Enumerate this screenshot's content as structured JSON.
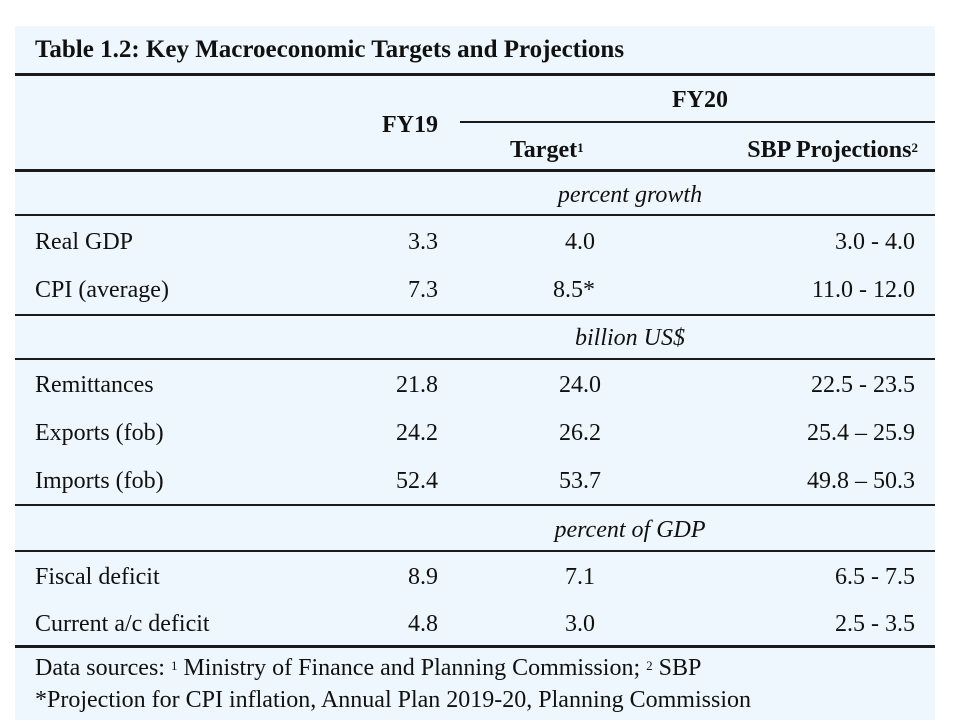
{
  "title": "Table 1.2: Key Macroeconomic Targets and Projections",
  "header": {
    "fy19": "FY19",
    "fy20": "FY20",
    "target": "Target",
    "target_sup": "1",
    "sbp": "SBP Projections",
    "sbp_sup": "2"
  },
  "sections": [
    {
      "unit": "percent growth",
      "rows": [
        {
          "label": "Real GDP",
          "fy19": "3.3",
          "target": "4.0",
          "sbp": "3.0 - 4.0"
        },
        {
          "label": "CPI (average)",
          "fy19": "7.3",
          "target": "8.5*",
          "sbp": "11.0 - 12.0"
        }
      ]
    },
    {
      "unit": "billion US$",
      "rows": [
        {
          "label": "Remittances",
          "fy19": "21.8",
          "target": "24.0",
          "sbp": "22.5 - 23.5"
        },
        {
          "label": "Exports (fob)",
          "fy19": "24.2",
          "target": "26.2",
          "sbp": "25.4 – 25.9"
        },
        {
          "label": "Imports (fob)",
          "fy19": "52.4",
          "target": "53.7",
          "sbp": "49.8 – 50.3"
        }
      ]
    },
    {
      "unit": "percent of GDP",
      "rows": [
        {
          "label": "Fiscal deficit",
          "fy19": "8.9",
          "target": "7.1",
          "sbp": "6.5 - 7.5"
        },
        {
          "label": "Current a/c deficit",
          "fy19": "4.8",
          "target": "3.0",
          "sbp": "2.5 - 3.5"
        }
      ]
    }
  ],
  "footnotes": {
    "prefix": "Data sources: ",
    "sup1": "1",
    "source1": " Ministry of Finance and Planning Commission; ",
    "sup2": "2",
    "source2": " SBP",
    "note": "*Projection for CPI inflation, Annual Plan 2019-20, Planning Commission"
  }
}
